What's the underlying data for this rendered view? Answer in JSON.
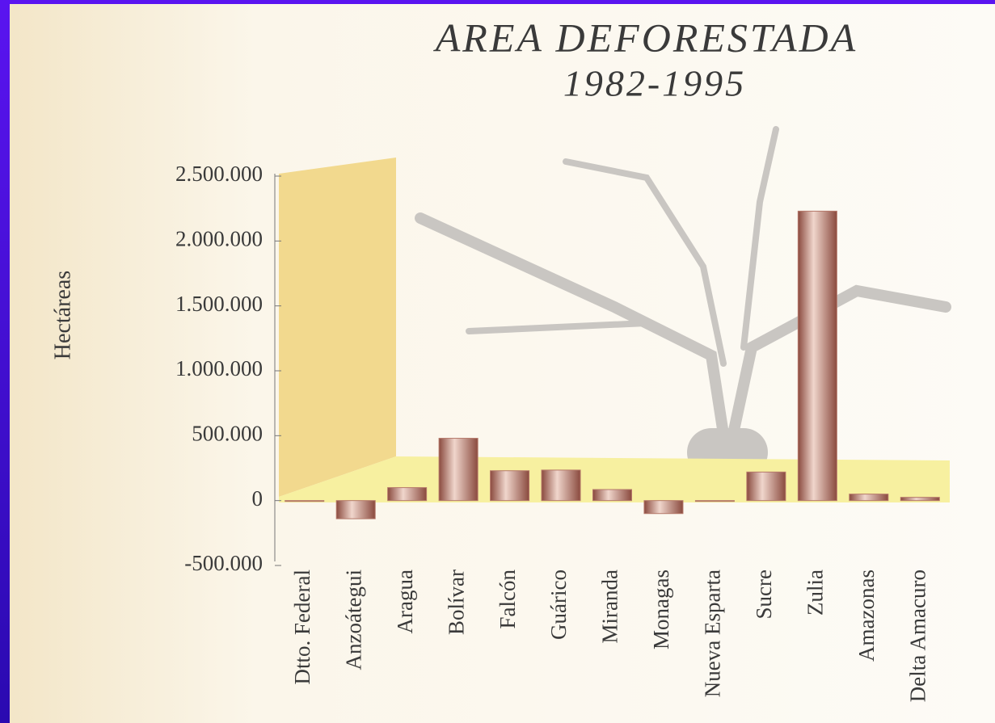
{
  "chart_data": {
    "type": "bar",
    "title": "AREA DEFORESTADA",
    "subtitle": "1982-1995",
    "y_label": "Hectáreas",
    "categories": [
      "Dtto. Federal",
      "Anzoátegui",
      "Aragua",
      "Bolívar",
      "Falcón",
      "Guárico",
      "Miranda",
      "Monagas",
      "Nueva Esparta",
      "Sucre",
      "Zulia",
      "Amazonas",
      "Delta Amacuro"
    ],
    "values": [
      0,
      -140000,
      100000,
      480000,
      230000,
      235000,
      85000,
      -100000,
      0,
      220000,
      2230000,
      50000,
      25000
    ],
    "color": "#b5786a",
    "ylim": [
      -500000,
      2500000
    ],
    "yticks": [
      {
        "value": -500000,
        "label": "-500.000"
      },
      0,
      {
        "value": 500000,
        "label": "500.000"
      },
      {
        "value": 1000000,
        "label": "1.000.000"
      },
      {
        "value": 1500000,
        "label": "1.500.000"
      },
      {
        "value": 2000000,
        "label": "2.000.000"
      },
      {
        "value": 2500000,
        "label": "2.500.000"
      }
    ]
  }
}
